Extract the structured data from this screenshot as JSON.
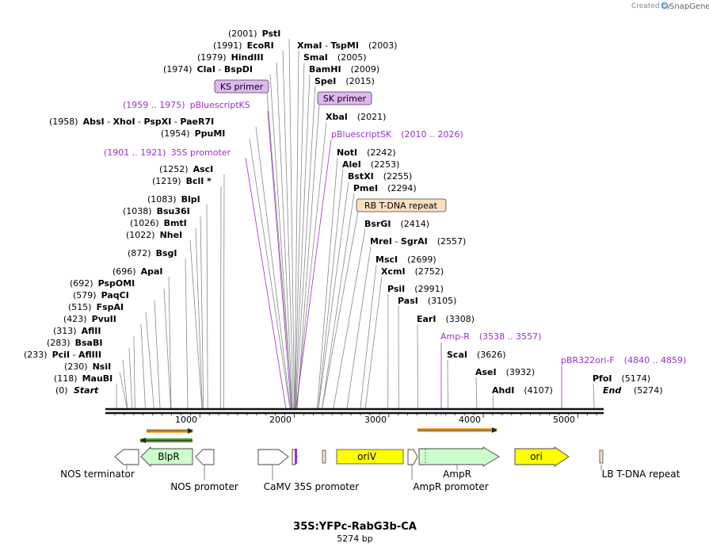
{
  "app": {
    "brand_small": "Created by",
    "brand_name": "SnapGene"
  },
  "title": "35S:YFPc-RabG3b-CA",
  "length_label": "5274 bp",
  "total_bp": 5274,
  "ticks": [
    "1000",
    "2000",
    "3000",
    "4000",
    "5000"
  ],
  "ends": {
    "start": {
      "name": "Start",
      "pos": "(0)"
    },
    "end": {
      "name": "End",
      "pos": "(5274)"
    }
  },
  "left_sites": [
    {
      "site": 118,
      "parts": [
        "(118)",
        "MauBI"
      ]
    },
    {
      "site": 230,
      "parts": [
        "(230)",
        "NsiI"
      ]
    },
    {
      "site": 233,
      "parts": [
        "(233)",
        "PciI",
        " - ",
        "AflIII"
      ]
    },
    {
      "site": 283,
      "parts": [
        "(283)",
        "BsaBI"
      ]
    },
    {
      "site": 313,
      "parts": [
        "(313)",
        "AflII"
      ]
    },
    {
      "site": 423,
      "parts": [
        "(423)",
        "PvuII"
      ]
    },
    {
      "site": 515,
      "parts": [
        "(515)",
        "FspAI"
      ]
    },
    {
      "site": 579,
      "parts": [
        "(579)",
        "PaqCI"
      ]
    },
    {
      "site": 692,
      "parts": [
        "(692)",
        "PspOMI"
      ]
    },
    {
      "site": 696,
      "parts": [
        "(696)",
        "ApaI"
      ]
    },
    {
      "site": 872,
      "parts": [
        "(872)",
        "BsgI"
      ]
    },
    {
      "site": 1022,
      "parts": [
        "(1022)",
        "NheI"
      ]
    },
    {
      "site": 1026,
      "parts": [
        "(1026)",
        "BmtI"
      ]
    },
    {
      "site": 1038,
      "parts": [
        "(1038)",
        "Bsu36I"
      ]
    },
    {
      "site": 1083,
      "parts": [
        "(1083)",
        "BlpI"
      ]
    },
    {
      "site": 1219,
      "parts": [
        "(1219)",
        "BclI *"
      ]
    },
    {
      "site": 1252,
      "parts": [
        "(1252)",
        "AscI"
      ]
    },
    {
      "site": 1954,
      "parts": [
        "(1954)",
        "PpuMI"
      ]
    },
    {
      "site": 1958,
      "parts": [
        "(1958)",
        "AbsI",
        " - ",
        "XhoI",
        " - ",
        "PspXI",
        " - ",
        "PaeR7I"
      ]
    },
    {
      "site": 1974,
      "parts": [
        "(1974)",
        "ClaI",
        " - ",
        "BspDI"
      ]
    },
    {
      "site": 1979,
      "parts": [
        "(1979)",
        "HindIII"
      ]
    },
    {
      "site": 1991,
      "parts": [
        "(1991)",
        "EcoRI"
      ]
    },
    {
      "site": 2001,
      "parts": [
        "(2001)",
        "PstI"
      ]
    }
  ],
  "right_sites": [
    {
      "site": 2003,
      "parts": [
        "XmaI",
        " - ",
        "TspMI",
        "(2003)"
      ]
    },
    {
      "site": 2005,
      "parts": [
        "SmaI",
        "(2005)"
      ]
    },
    {
      "site": 2009,
      "parts": [
        "BamHI",
        "(2009)"
      ]
    },
    {
      "site": 2015,
      "parts": [
        "SpeI",
        "(2015)"
      ]
    },
    {
      "site": 2021,
      "parts": [
        "XbaI",
        "(2021)"
      ]
    },
    {
      "site": 2242,
      "parts": [
        "NotI",
        "(2242)"
      ]
    },
    {
      "site": 2253,
      "parts": [
        "AleI",
        "(2253)"
      ]
    },
    {
      "site": 2255,
      "parts": [
        "BstXI",
        "(2255)"
      ]
    },
    {
      "site": 2294,
      "parts": [
        "PmeI",
        "(2294)"
      ]
    },
    {
      "site": 2414,
      "parts": [
        "BsrGI",
        "(2414)"
      ]
    },
    {
      "site": 2557,
      "parts": [
        "MreI",
        " - ",
        "SgrAI",
        "(2557)"
      ]
    },
    {
      "site": 2699,
      "parts": [
        "MscI",
        "(2699)"
      ]
    },
    {
      "site": 2752,
      "parts": [
        "XcmI",
        "(2752)"
      ]
    },
    {
      "site": 2991,
      "parts": [
        "PsiI",
        "(2991)"
      ]
    },
    {
      "site": 3105,
      "parts": [
        "PasI",
        "(3105)"
      ]
    },
    {
      "site": 3308,
      "parts": [
        "EarI",
        "(3308)"
      ]
    },
    {
      "site": 3626,
      "parts": [
        "ScaI",
        "(3626)"
      ]
    },
    {
      "site": 3932,
      "parts": [
        "AseI",
        "(3932)"
      ]
    },
    {
      "site": 4107,
      "parts": [
        "AhdI",
        "(4107)"
      ]
    },
    {
      "site": 5174,
      "parts": [
        "PfoI",
        "(5174)"
      ]
    }
  ],
  "primers_text": {
    "pbs_ks": [
      "(1959 .. 1975)",
      "pBluescriptKS"
    ],
    "s35": [
      "(1901 .. 1921)",
      "35S promoter"
    ],
    "pbs_sk": [
      "pBluescriptSK",
      "(2010 .. 2026)"
    ],
    "ampr": [
      "Amp-R",
      "(3538 .. 3557)"
    ],
    "pbr": [
      "pBR322ori-F",
      "(4840 .. 4859)"
    ]
  },
  "boxed_labels": {
    "ks_primer": "KS primer",
    "sk_primer": "SK primer",
    "rb_repeat": "RB T-DNA repeat"
  },
  "features": {
    "blpr": "BlpR",
    "oriv": "oriV",
    "ori": "ori",
    "nos_terminator": "NOS terminator",
    "nos_promoter": "NOS promoter",
    "camv35s": "CaMV 35S promoter",
    "ampr": "AmpR",
    "ampr_promoter": "AmpR promoter",
    "lb_repeat": "LB T-DNA repeat"
  },
  "colors": {
    "purple": "#9b2fc9",
    "orange": "#f3a63b",
    "green": "#4c9a2a",
    "yellow": "#ffff00",
    "light_green": "#ccffcc",
    "tan": "#fae0c0"
  }
}
